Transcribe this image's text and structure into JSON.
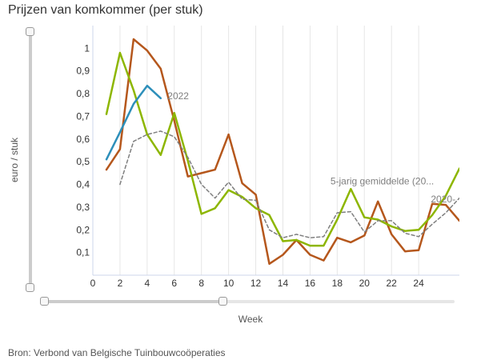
{
  "page": {
    "title": "Prijzen van komkommer (per stuk)",
    "source": "Bron: Verbond van Belgische Tuinbouwcoöperaties"
  },
  "chart_data": {
    "type": "line",
    "title": "Prijzen van komkommer (per stuk)",
    "xlabel": "Week",
    "ylabel": "euro / stuk",
    "xlim": [
      0,
      27
    ],
    "ylim": [
      0,
      1.1
    ],
    "x_ticks": [
      0,
      2,
      4,
      6,
      8,
      10,
      12,
      14,
      16,
      18,
      20,
      22,
      24
    ],
    "y_ticks": [
      0.1,
      0.2,
      0.3,
      0.4,
      0.5,
      0.6,
      0.7,
      0.8,
      0.9,
      1
    ],
    "y_tick_labels": [
      "0,1",
      "0,2",
      "0,3",
      "0,4",
      "0,5",
      "0,6",
      "0,7",
      "0,8",
      "0,9",
      "1"
    ],
    "grid": "vertical",
    "series": [
      {
        "color": "#b5571c",
        "style": "solid",
        "x": [
          1,
          2,
          3,
          4,
          5,
          6,
          7,
          8,
          9,
          10,
          11,
          12,
          13,
          14,
          15,
          16,
          17,
          18,
          19,
          20,
          21,
          22,
          23,
          24,
          25,
          26,
          27
        ],
        "y": [
          0.465,
          0.555,
          1.04,
          0.99,
          0.91,
          0.68,
          0.435,
          0.45,
          0.465,
          0.62,
          0.405,
          0.355,
          0.05,
          0.09,
          0.155,
          0.09,
          0.065,
          0.165,
          0.145,
          0.175,
          0.325,
          0.18,
          0.105,
          0.11,
          0.315,
          0.31,
          0.24
        ]
      },
      {
        "color": "#8db600",
        "style": "solid",
        "x": [
          1,
          2,
          3,
          4,
          5,
          6,
          7,
          8,
          9,
          10,
          11,
          12,
          13,
          14,
          15,
          16,
          17,
          18,
          19,
          20,
          21,
          22,
          23,
          24,
          25,
          26,
          27
        ],
        "y": [
          0.71,
          0.98,
          0.815,
          0.62,
          0.53,
          0.715,
          0.505,
          0.27,
          0.295,
          0.375,
          0.345,
          0.295,
          0.265,
          0.15,
          0.155,
          0.13,
          0.13,
          0.245,
          0.38,
          0.255,
          0.245,
          0.215,
          0.195,
          0.2,
          0.265,
          0.35,
          0.47
        ]
      },
      {
        "name": "2022",
        "color": "#2d8fba",
        "style": "solid",
        "x": [
          1,
          2,
          3,
          4,
          5
        ],
        "y": [
          0.51,
          0.63,
          0.755,
          0.835,
          0.78
        ]
      },
      {
        "name": "5-jarig gemiddelde (20...",
        "color": "#7f7f7f",
        "style": "dashed",
        "x": [
          2,
          3,
          4,
          5,
          6,
          7,
          8,
          9,
          10,
          11,
          12,
          13,
          14,
          15,
          16,
          17,
          18,
          19,
          20,
          21,
          22,
          23,
          24,
          25,
          26,
          27
        ],
        "y": [
          0.4,
          0.59,
          0.62,
          0.635,
          0.61,
          0.52,
          0.4,
          0.34,
          0.41,
          0.335,
          0.33,
          0.2,
          0.165,
          0.18,
          0.165,
          0.17,
          0.275,
          0.28,
          0.19,
          0.24,
          0.24,
          0.185,
          0.17,
          0.225,
          0.275,
          0.34
        ]
      }
    ],
    "series_labels": [
      {
        "text": "2022",
        "x": 5.5,
        "y": 0.775,
        "color": "#7f7f7f"
      },
      {
        "text": "5-jarig gemiddelde (20...",
        "x": 17.5,
        "y": 0.4,
        "color": "#7f7f7f"
      },
      {
        "text": "2020-",
        "x": 24.9,
        "y": 0.32,
        "color": "#7f7f7f"
      }
    ]
  }
}
